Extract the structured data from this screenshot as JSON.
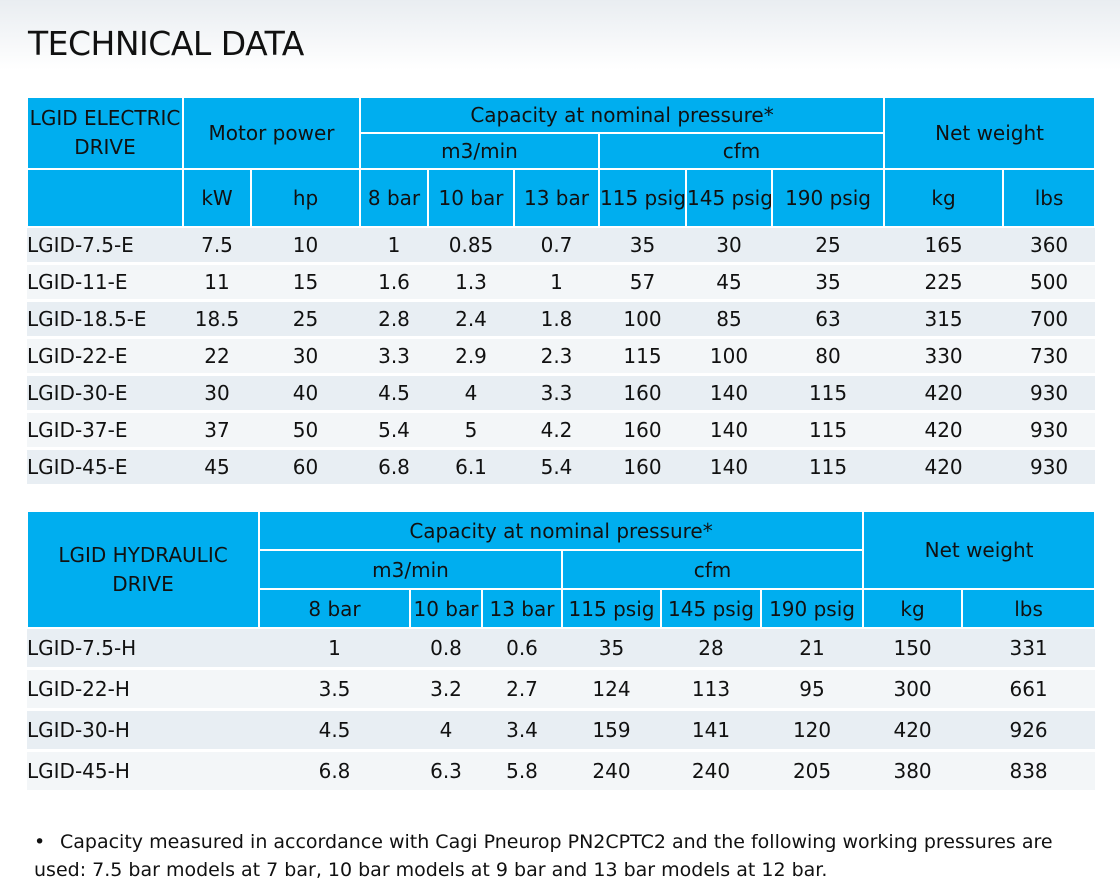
{
  "title": "TECHNICAL DATA",
  "electric": {
    "corner": "LGID ELECTRIC DRIVE",
    "motor_power": "Motor power",
    "capacity": "Capacity at nominal pressure*",
    "m3min": "m3/min",
    "cfm": "cfm",
    "net_weight": "Net weight",
    "units": [
      "kW",
      "hp",
      "8 bar",
      "10 bar",
      "13 bar",
      "115 psig",
      "145 psig",
      "190 psig",
      "kg",
      "lbs"
    ],
    "rows": [
      [
        "LGID-7.5-E",
        "7.5",
        "10",
        "1",
        "0.85",
        "0.7",
        "35",
        "30",
        "25",
        "165",
        "360"
      ],
      [
        "LGID-11-E",
        "11",
        "15",
        "1.6",
        "1.3",
        "1",
        "57",
        "45",
        "35",
        "225",
        "500"
      ],
      [
        "LGID-18.5-E",
        "18.5",
        "25",
        "2.8",
        "2.4",
        "1.8",
        "100",
        "85",
        "63",
        "315",
        "700"
      ],
      [
        "LGID-22-E",
        "22",
        "30",
        "3.3",
        "2.9",
        "2.3",
        "115",
        "100",
        "80",
        "330",
        "730"
      ],
      [
        "LGID-30-E",
        "30",
        "40",
        "4.5",
        "4",
        "3.3",
        "160",
        "140",
        "115",
        "420",
        "930"
      ],
      [
        "LGID-37-E",
        "37",
        "50",
        "5.4",
        "5",
        "4.2",
        "160",
        "140",
        "115",
        "420",
        "930"
      ],
      [
        "LGID-45-E",
        "45",
        "60",
        "6.8",
        "6.1",
        "5.4",
        "160",
        "140",
        "115",
        "420",
        "930"
      ]
    ]
  },
  "hydraulic": {
    "corner": "LGID HYDRAULIC DRIVE",
    "capacity": "Capacity at nominal pressure*",
    "m3min": "m3/min",
    "cfm": "cfm",
    "net_weight": "Net weight",
    "units": [
      "8 bar",
      "10 bar",
      "13 bar",
      "115 psig",
      "145 psig",
      "190 psig",
      "kg",
      "lbs"
    ],
    "rows": [
      [
        "LGID-7.5-H",
        "1",
        "0.8",
        "0.6",
        "35",
        "28",
        "21",
        "150",
        "331"
      ],
      [
        "LGID-22-H",
        "3.5",
        "3.2",
        "2.7",
        "124",
        "113",
        "95",
        "300",
        "661"
      ],
      [
        "LGID-30-H",
        "4.5",
        "4",
        "3.4",
        "159",
        "141",
        "120",
        "420",
        "926"
      ],
      [
        "LGID-45-H",
        "6.8",
        "6.3",
        "5.8",
        "240",
        "240",
        "205",
        "380",
        "838"
      ]
    ]
  },
  "footnote": {
    "bullet": "•",
    "text": "Capacity measured in accordance with Cagi Pneurop PN2CPTC2 and the following working pressures are used: 7.5 bar models at 7 bar, 10 bar models at 9 bar and 13 bar models at 12 bar."
  },
  "colors": {
    "header": "#00aeef",
    "row_odd": "#e8eef3",
    "row_even": "#f3f6f8"
  }
}
